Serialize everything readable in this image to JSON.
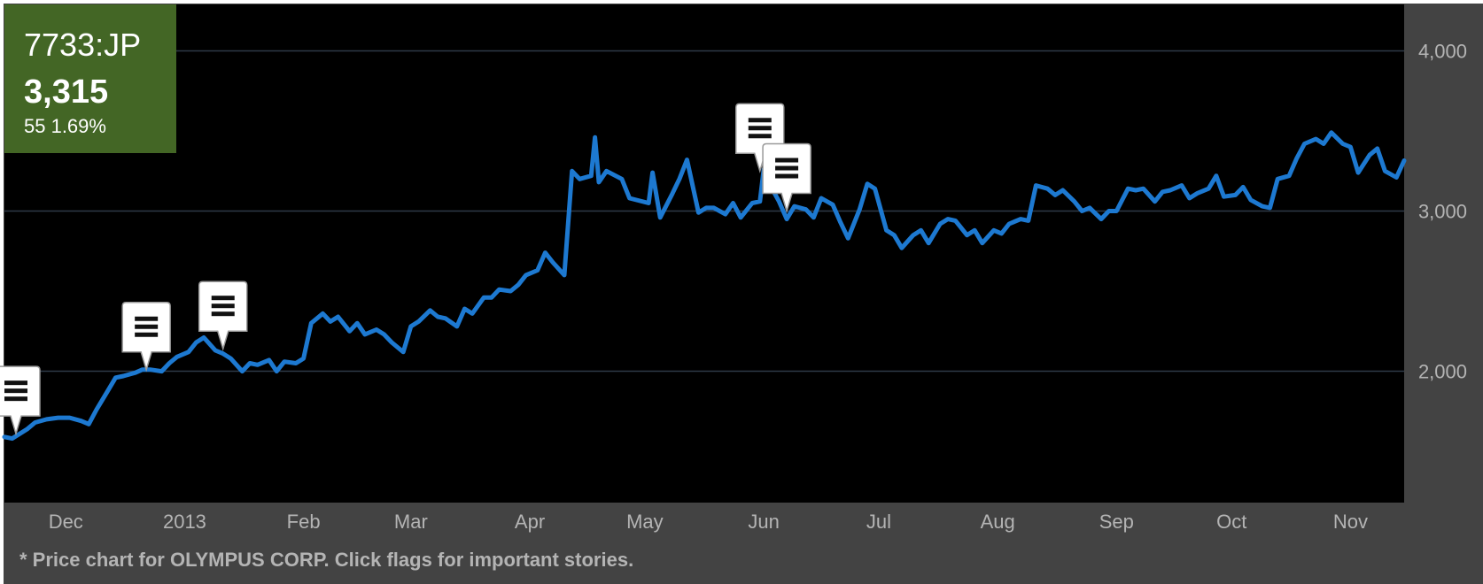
{
  "ticker": {
    "symbol": "7733:JP",
    "price": "3,315",
    "change": "55 1.69%",
    "box_color": "#436625"
  },
  "footnote": "* Price chart for OLYMPUS CORP. Click flags for important stories.",
  "colors": {
    "background": "#000000",
    "panel": "#434343",
    "line": "#1d79d1",
    "gridline": "#2e3a47",
    "axis_text": "#b4b4b4"
  },
  "flag_icon": "menu-lines-icon",
  "chart_data": {
    "type": "line",
    "title": "",
    "xlabel": "",
    "ylabel": "",
    "x_tick_labels": [
      "Dec",
      "2013",
      "Feb",
      "Mar",
      "Apr",
      "May",
      "Jun",
      "Jul",
      "Aug",
      "Sep",
      "Oct",
      "Nov"
    ],
    "x_tick_dates": [
      "2012-12-01",
      "2013-01-01",
      "2013-02-01",
      "2013-03-01",
      "2013-04-01",
      "2013-05-01",
      "2013-06-01",
      "2013-07-01",
      "2013-08-01",
      "2013-09-01",
      "2013-10-01",
      "2013-11-01"
    ],
    "y_ticks": [
      {
        "value": 2000,
        "label": "2,000"
      },
      {
        "value": 3000,
        "label": "3,000"
      },
      {
        "value": 4000,
        "label": "4,000"
      }
    ],
    "xlim": [
      "2012-11-20",
      "2013-11-20"
    ],
    "ylim": [
      1180,
      4290
    ],
    "grid": "horizontal",
    "legend": "none",
    "series": [
      {
        "points": [
          [
            "2012-11-20",
            1590
          ],
          [
            "2012-11-22",
            1580
          ],
          [
            "2012-11-26",
            1640
          ],
          [
            "2012-11-28",
            1680
          ],
          [
            "2012-12-01",
            1700
          ],
          [
            "2012-12-04",
            1710
          ],
          [
            "2012-12-07",
            1710
          ],
          [
            "2012-12-10",
            1690
          ],
          [
            "2012-12-12",
            1670
          ],
          [
            "2012-12-14",
            1760
          ],
          [
            "2012-12-17",
            1880
          ],
          [
            "2012-12-19",
            1960
          ],
          [
            "2012-12-21",
            1970
          ],
          [
            "2012-12-24",
            1990
          ],
          [
            "2012-12-26",
            2010
          ],
          [
            "2012-12-28",
            2010
          ],
          [
            "2012-12-31",
            2000
          ],
          [
            "2013-01-02",
            2050
          ],
          [
            "2013-01-04",
            2090
          ],
          [
            "2013-01-07",
            2120
          ],
          [
            "2013-01-09",
            2180
          ],
          [
            "2013-01-11",
            2210
          ],
          [
            "2013-01-14",
            2130
          ],
          [
            "2013-01-16",
            2110
          ],
          [
            "2013-01-18",
            2080
          ],
          [
            "2013-01-21",
            2000
          ],
          [
            "2013-01-23",
            2050
          ],
          [
            "2013-01-25",
            2040
          ],
          [
            "2013-01-28",
            2070
          ],
          [
            "2013-01-30",
            2000
          ],
          [
            "2013-02-01",
            2060
          ],
          [
            "2013-02-04",
            2050
          ],
          [
            "2013-02-06",
            2080
          ],
          [
            "2013-02-08",
            2300
          ],
          [
            "2013-02-11",
            2360
          ],
          [
            "2013-02-13",
            2310
          ],
          [
            "2013-02-15",
            2340
          ],
          [
            "2013-02-18",
            2250
          ],
          [
            "2013-02-20",
            2300
          ],
          [
            "2013-02-22",
            2230
          ],
          [
            "2013-02-25",
            2260
          ],
          [
            "2013-02-27",
            2230
          ],
          [
            "2013-03-01",
            2180
          ],
          [
            "2013-03-04",
            2120
          ],
          [
            "2013-03-06",
            2280
          ],
          [
            "2013-03-08",
            2310
          ],
          [
            "2013-03-11",
            2380
          ],
          [
            "2013-03-13",
            2340
          ],
          [
            "2013-03-15",
            2330
          ],
          [
            "2013-03-18",
            2280
          ],
          [
            "2013-03-20",
            2390
          ],
          [
            "2013-03-22",
            2360
          ],
          [
            "2013-03-25",
            2460
          ],
          [
            "2013-03-27",
            2460
          ],
          [
            "2013-03-29",
            2510
          ],
          [
            "2013-04-01",
            2500
          ],
          [
            "2013-04-03",
            2540
          ],
          [
            "2013-04-05",
            2600
          ],
          [
            "2013-04-08",
            2630
          ],
          [
            "2013-04-10",
            2740
          ],
          [
            "2013-04-12",
            2680
          ],
          [
            "2013-04-15",
            2600
          ],
          [
            "2013-04-17",
            3250
          ],
          [
            "2013-04-19",
            3200
          ],
          [
            "2013-04-22",
            3220
          ],
          [
            "2013-04-23",
            3460
          ],
          [
            "2013-04-24",
            3180
          ],
          [
            "2013-04-26",
            3250
          ],
          [
            "2013-04-30",
            3200
          ],
          [
            "2013-05-02",
            3080
          ],
          [
            "2013-05-07",
            3050
          ],
          [
            "2013-05-08",
            3240
          ],
          [
            "2013-05-10",
            2960
          ],
          [
            "2013-05-13",
            3100
          ],
          [
            "2013-05-15",
            3200
          ],
          [
            "2013-05-17",
            3320
          ],
          [
            "2013-05-20",
            2990
          ],
          [
            "2013-05-22",
            3020
          ],
          [
            "2013-05-24",
            3020
          ],
          [
            "2013-05-27",
            2980
          ],
          [
            "2013-05-29",
            3050
          ],
          [
            "2013-05-31",
            2960
          ],
          [
            "2013-06-03",
            3050
          ],
          [
            "2013-06-05",
            3060
          ],
          [
            "2013-06-06",
            3260
          ],
          [
            "2013-06-07",
            3190
          ],
          [
            "2013-06-10",
            3060
          ],
          [
            "2013-06-12",
            2950
          ],
          [
            "2013-06-14",
            3030
          ],
          [
            "2013-06-17",
            3010
          ],
          [
            "2013-06-19",
            2960
          ],
          [
            "2013-06-21",
            3080
          ],
          [
            "2013-06-24",
            3040
          ],
          [
            "2013-06-26",
            2930
          ],
          [
            "2013-06-28",
            2830
          ],
          [
            "2013-07-01",
            3010
          ],
          [
            "2013-07-03",
            3170
          ],
          [
            "2013-07-05",
            3140
          ],
          [
            "2013-07-08",
            2880
          ],
          [
            "2013-07-10",
            2850
          ],
          [
            "2013-07-12",
            2770
          ],
          [
            "2013-07-15",
            2850
          ],
          [
            "2013-07-17",
            2880
          ],
          [
            "2013-07-19",
            2800
          ],
          [
            "2013-07-22",
            2920
          ],
          [
            "2013-07-24",
            2950
          ],
          [
            "2013-07-26",
            2940
          ],
          [
            "2013-07-29",
            2850
          ],
          [
            "2013-07-31",
            2880
          ],
          [
            "2013-08-02",
            2800
          ],
          [
            "2013-08-05",
            2880
          ],
          [
            "2013-08-07",
            2860
          ],
          [
            "2013-08-09",
            2920
          ],
          [
            "2013-08-12",
            2950
          ],
          [
            "2013-08-14",
            2940
          ],
          [
            "2013-08-16",
            3160
          ],
          [
            "2013-08-19",
            3140
          ],
          [
            "2013-08-21",
            3100
          ],
          [
            "2013-08-23",
            3130
          ],
          [
            "2013-08-26",
            3060
          ],
          [
            "2013-08-28",
            3000
          ],
          [
            "2013-08-30",
            3020
          ],
          [
            "2013-09-02",
            2950
          ],
          [
            "2013-09-04",
            3000
          ],
          [
            "2013-09-06",
            3000
          ],
          [
            "2013-09-09",
            3140
          ],
          [
            "2013-09-11",
            3130
          ],
          [
            "2013-09-13",
            3140
          ],
          [
            "2013-09-16",
            3060
          ],
          [
            "2013-09-18",
            3120
          ],
          [
            "2013-09-20",
            3130
          ],
          [
            "2013-09-23",
            3160
          ],
          [
            "2013-09-25",
            3080
          ],
          [
            "2013-09-27",
            3110
          ],
          [
            "2013-09-30",
            3140
          ],
          [
            "2013-10-02",
            3220
          ],
          [
            "2013-10-04",
            3090
          ],
          [
            "2013-10-07",
            3100
          ],
          [
            "2013-10-09",
            3150
          ],
          [
            "2013-10-11",
            3070
          ],
          [
            "2013-10-14",
            3030
          ],
          [
            "2013-10-16",
            3020
          ],
          [
            "2013-10-18",
            3200
          ],
          [
            "2013-10-21",
            3220
          ],
          [
            "2013-10-23",
            3330
          ],
          [
            "2013-10-25",
            3420
          ],
          [
            "2013-10-28",
            3450
          ],
          [
            "2013-10-30",
            3420
          ],
          [
            "2013-11-01",
            3490
          ],
          [
            "2013-11-04",
            3420
          ],
          [
            "2013-11-06",
            3400
          ],
          [
            "2013-11-08",
            3240
          ],
          [
            "2013-11-11",
            3350
          ],
          [
            "2013-11-13",
            3390
          ],
          [
            "2013-11-15",
            3250
          ],
          [
            "2013-11-18",
            3210
          ],
          [
            "2013-11-20",
            3315
          ]
        ]
      }
    ],
    "flags": [
      {
        "date": "2012-11-23",
        "value": 1610
      },
      {
        "date": "2012-12-27",
        "value": 2010
      },
      {
        "date": "2013-01-16",
        "value": 2140
      },
      {
        "date": "2013-06-05",
        "value": 3250
      },
      {
        "date": "2013-06-12",
        "value": 3000
      }
    ]
  }
}
